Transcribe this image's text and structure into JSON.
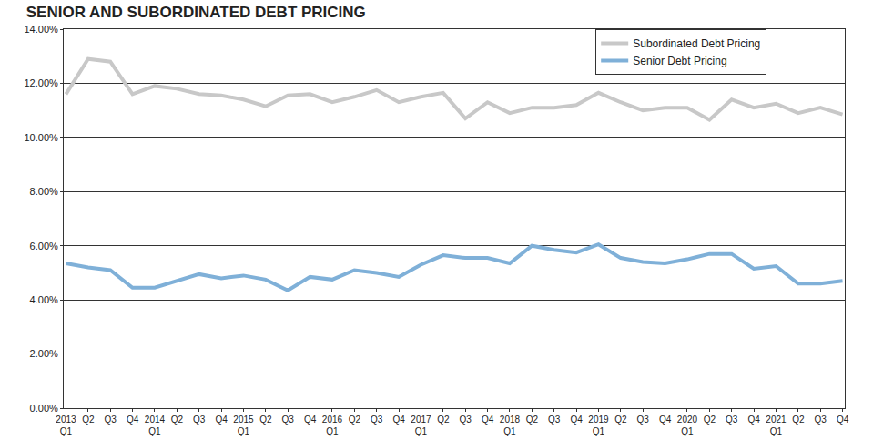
{
  "chart_data": {
    "type": "line",
    "title": "SENIOR AND SUBORDINATED DEBT PRICING",
    "categories": [
      "2013 Q1",
      "Q2",
      "Q3",
      "Q4",
      "2014 Q1",
      "Q2",
      "Q3",
      "Q4",
      "2015 Q1",
      "Q2",
      "Q3",
      "Q4",
      "2016 Q1",
      "Q2",
      "Q3",
      "Q4",
      "2017 Q1",
      "Q2",
      "Q3",
      "Q4",
      "2018 Q1",
      "Q2",
      "Q3",
      "Q4",
      "2019 Q1",
      "Q2",
      "Q3",
      "Q4",
      "2020 Q1",
      "Q2",
      "Q3",
      "Q4",
      "2021 Q1",
      "Q2",
      "Q3",
      "Q4"
    ],
    "series": [
      {
        "name": "Subordinated Debt Pricing",
        "color": "#c8c8c8",
        "values": [
          11.6,
          12.9,
          12.8,
          11.6,
          11.9,
          11.8,
          11.6,
          11.55,
          11.4,
          11.15,
          11.55,
          11.6,
          11.3,
          11.5,
          11.75,
          11.3,
          11.5,
          11.65,
          10.7,
          11.3,
          10.9,
          11.1,
          11.1,
          11.2,
          11.65,
          11.3,
          11.0,
          11.1,
          11.1,
          10.65,
          11.4,
          11.1,
          11.25,
          10.9,
          11.1,
          10.85
        ]
      },
      {
        "name": "Senior Debt Pricing",
        "color": "#7fb0d8",
        "values": [
          5.35,
          5.2,
          5.1,
          4.45,
          4.45,
          4.7,
          4.95,
          4.8,
          4.9,
          4.75,
          4.35,
          4.85,
          4.75,
          5.1,
          5.0,
          4.85,
          5.3,
          5.65,
          5.55,
          5.55,
          5.35,
          6.0,
          5.85,
          5.75,
          6.05,
          5.55,
          5.4,
          5.35,
          5.5,
          5.7,
          5.7,
          5.15,
          5.25,
          4.6,
          4.6,
          4.7
        ]
      }
    ],
    "ylim": [
      0,
      14
    ],
    "yticks": [
      {
        "value": 0,
        "label": "0.00%"
      },
      {
        "value": 2,
        "label": "2.00%"
      },
      {
        "value": 4,
        "label": "4.00%"
      },
      {
        "value": 6,
        "label": "6.00%"
      },
      {
        "value": 8,
        "label": "8.00%"
      },
      {
        "value": 10,
        "label": "10.00%"
      },
      {
        "value": 12,
        "label": "12.00%"
      },
      {
        "value": 14,
        "label": "14.00%"
      }
    ],
    "grid": true,
    "legend": "top right"
  }
}
